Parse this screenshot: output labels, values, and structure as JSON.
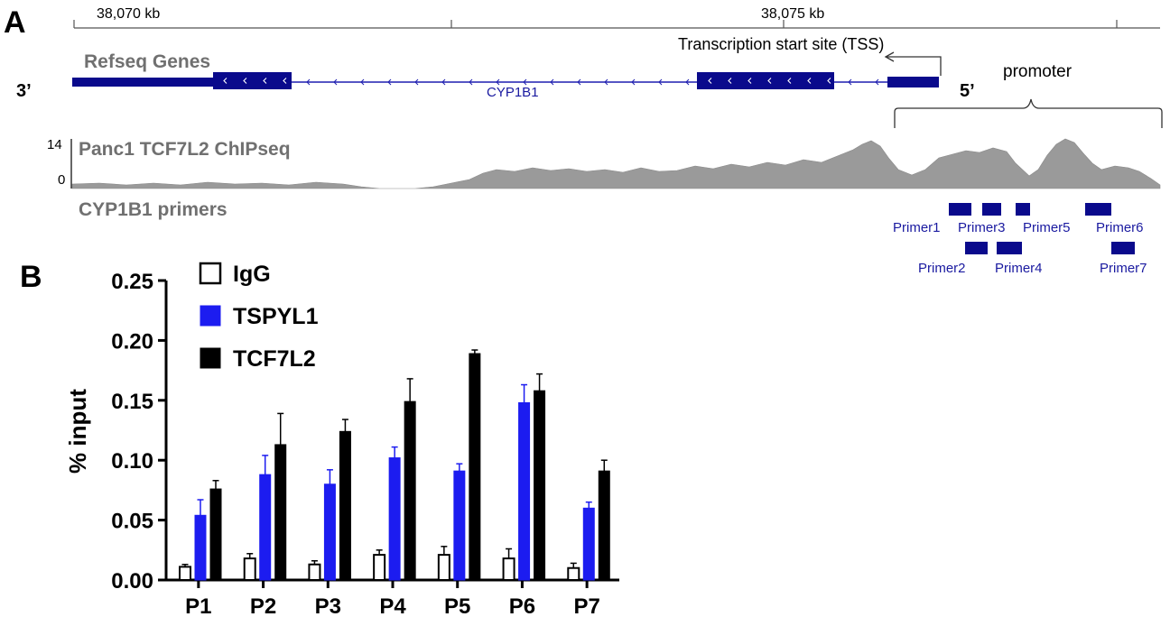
{
  "panel_a": {
    "letter": "A",
    "coordinates": [
      {
        "label": "38,070 kb"
      },
      {
        "label": "38,075 kb"
      }
    ],
    "refseq_label": "Refseq Genes",
    "gene_name": "CYP1B1",
    "three_prime": "3’",
    "five_prime": "5’",
    "tss_label": "Transcription start site (TSS)",
    "promoter_label": "promoter",
    "chip_label": "Panc1 TCF7L2 ChIPseq",
    "chip_scale_max": "14",
    "chip_scale_min": "0",
    "primers_label": "CYP1B1 primers",
    "primers": [
      {
        "name": "Primer1"
      },
      {
        "name": "Primer2"
      },
      {
        "name": "Primer3"
      },
      {
        "name": "Primer4"
      },
      {
        "name": "Primer5"
      },
      {
        "name": "Primer6"
      },
      {
        "name": "Primer7"
      }
    ],
    "colors": {
      "gene": "#0a0a8c",
      "chip": "#9a9a9a",
      "primer": "#0a0a8c",
      "primer_text": "#1a1aa0"
    }
  },
  "chart_data": {
    "panel_letter": "B",
    "type": "bar",
    "title": "",
    "xlabel": "",
    "ylabel": "% input",
    "ylim": [
      0,
      0.25
    ],
    "yticks": [
      "0.00",
      "0.05",
      "0.10",
      "0.15",
      "0.20",
      "0.25"
    ],
    "categories": [
      "P1",
      "P2",
      "P3",
      "P4",
      "P5",
      "P6",
      "P7"
    ],
    "series": [
      {
        "name": "IgG",
        "color": "#ffffff",
        "stroke": "#000000",
        "values": [
          0.011,
          0.018,
          0.013,
          0.021,
          0.021,
          0.018,
          0.01
        ],
        "errors": [
          0.002,
          0.004,
          0.003,
          0.004,
          0.007,
          0.008,
          0.004
        ]
      },
      {
        "name": "TSPYL1",
        "color": "#1c1cf0",
        "stroke": "#1c1cf0",
        "values": [
          0.054,
          0.088,
          0.08,
          0.102,
          0.091,
          0.148,
          0.06
        ],
        "errors": [
          0.013,
          0.016,
          0.012,
          0.009,
          0.006,
          0.015,
          0.005
        ]
      },
      {
        "name": "TCF7L2",
        "color": "#000000",
        "stroke": "#000000",
        "values": [
          0.076,
          0.113,
          0.124,
          0.149,
          0.189,
          0.158,
          0.091
        ],
        "errors": [
          0.007,
          0.026,
          0.01,
          0.019,
          0.003,
          0.014,
          0.009
        ]
      }
    ],
    "legend_position": "top-left",
    "grid": false
  }
}
